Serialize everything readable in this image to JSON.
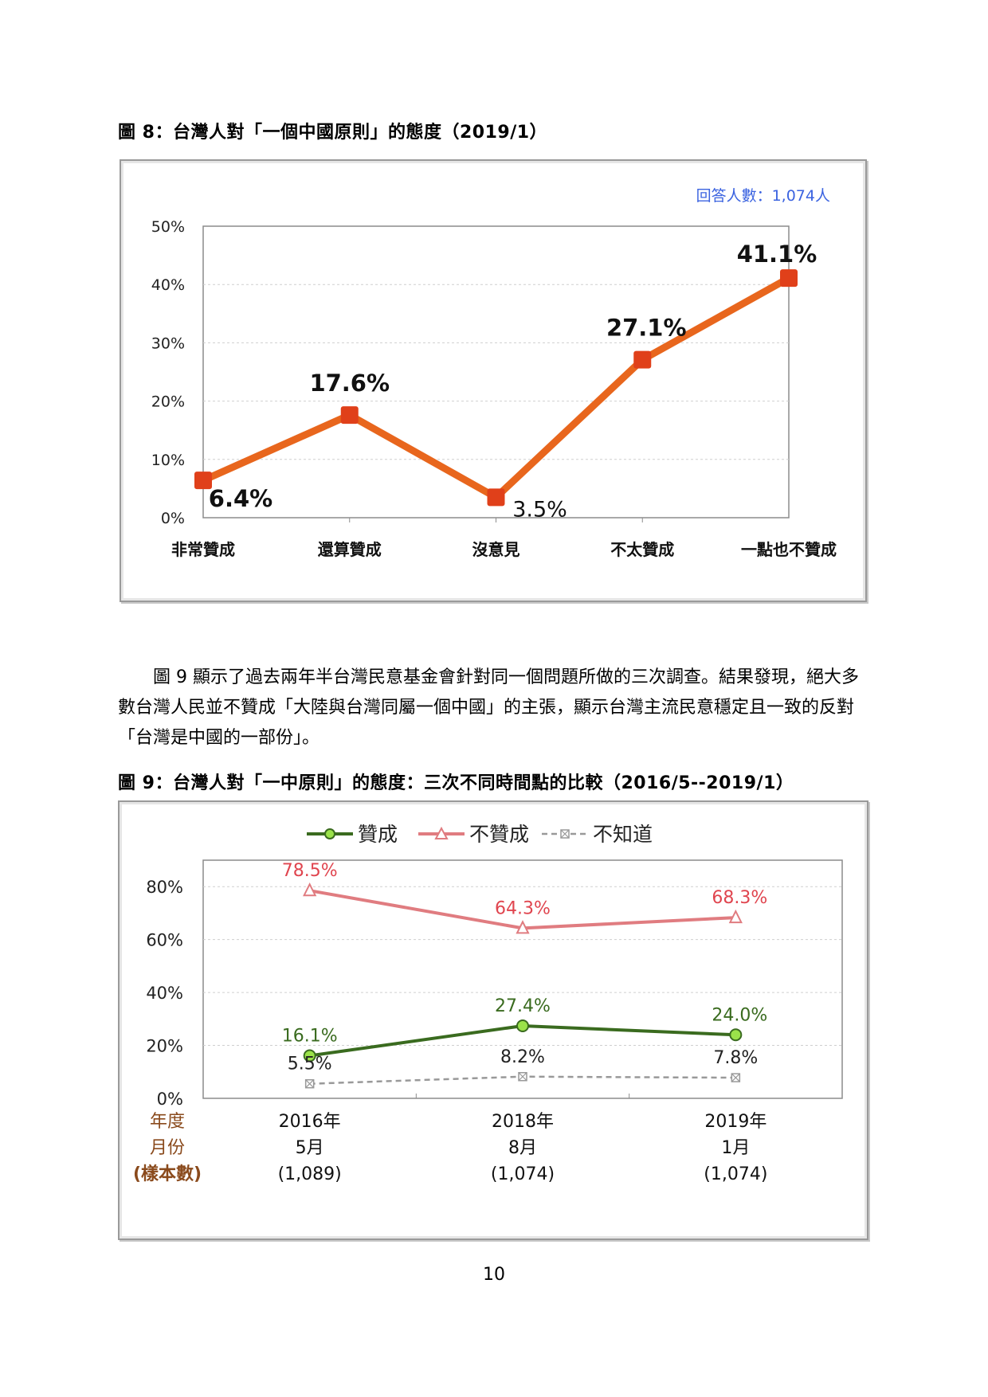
{
  "figure8": {
    "caption": "圖 8：台灣人對「一個中國原則」的態度（2019/1）",
    "note": "回答人數：1,074人",
    "chart_data": {
      "type": "line",
      "categories": [
        "非常贊成",
        "還算贊成",
        "沒意見",
        "不太贊成",
        "一點也不贊成"
      ],
      "values": [
        6.4,
        17.6,
        3.5,
        27.1,
        41.1
      ],
      "data_labels": [
        "6.4%",
        "17.6%",
        "3.5%",
        "27.1%",
        "41.1%"
      ],
      "ylim": [
        0,
        50
      ],
      "yticks": [
        "0%",
        "10%",
        "20%",
        "30%",
        "40%",
        "50%"
      ],
      "grid": true,
      "color": "#e8661d",
      "marker_color": "#e0401a"
    }
  },
  "paragraph": "圖 9 顯示了過去兩年半台灣民意基金會針對同一個問題所做的三次調查。結果發現，絕大多數台灣人民並不贊成「大陸與台灣同屬一個中國」的主張，顯示台灣主流民意穩定且一致的反對「台灣是中國的一部份」。",
  "figure9": {
    "caption": "圖 9：台灣人對「一中原則」的態度：三次不同時間點的比較（2016/5--2019/1）",
    "row_labels": [
      "年度",
      "月份",
      "(樣本數)"
    ],
    "row_label_color": "#8a4a1c",
    "chart_data": {
      "type": "line",
      "x_years": [
        "2016年",
        "2018年",
        "2019年"
      ],
      "x_months": [
        "5月",
        "8月",
        "1月"
      ],
      "x_samples": [
        "(1,089)",
        "(1,074)",
        "(1,074)"
      ],
      "ylim": [
        0,
        90
      ],
      "yticks": [
        "0%",
        "20%",
        "40%",
        "60%",
        "80%"
      ],
      "ytick_values": [
        0,
        20,
        40,
        60,
        80
      ],
      "legend_position": "top",
      "series": [
        {
          "name": "贊成",
          "values": [
            16.1,
            27.4,
            24.0
          ],
          "labels": [
            "16.1%",
            "27.4%",
            "24.0%"
          ],
          "color": "#3a6b1f",
          "marker_fill": "#9be24a",
          "marker": "circle"
        },
        {
          "name": "不贊成",
          "values": [
            78.5,
            64.3,
            68.3
          ],
          "labels": [
            "78.5%",
            "64.3%",
            "68.3%"
          ],
          "color": "#e07c80",
          "label_color": "#e0454f",
          "marker": "triangle"
        },
        {
          "name": "不知道",
          "values": [
            5.5,
            8.2,
            7.8
          ],
          "labels": [
            "5.5%",
            "8.2%",
            "7.8%"
          ],
          "color": "#999999",
          "label_color": "#222222",
          "marker": "square-x",
          "dashed": true
        }
      ]
    }
  },
  "page_number": "10"
}
